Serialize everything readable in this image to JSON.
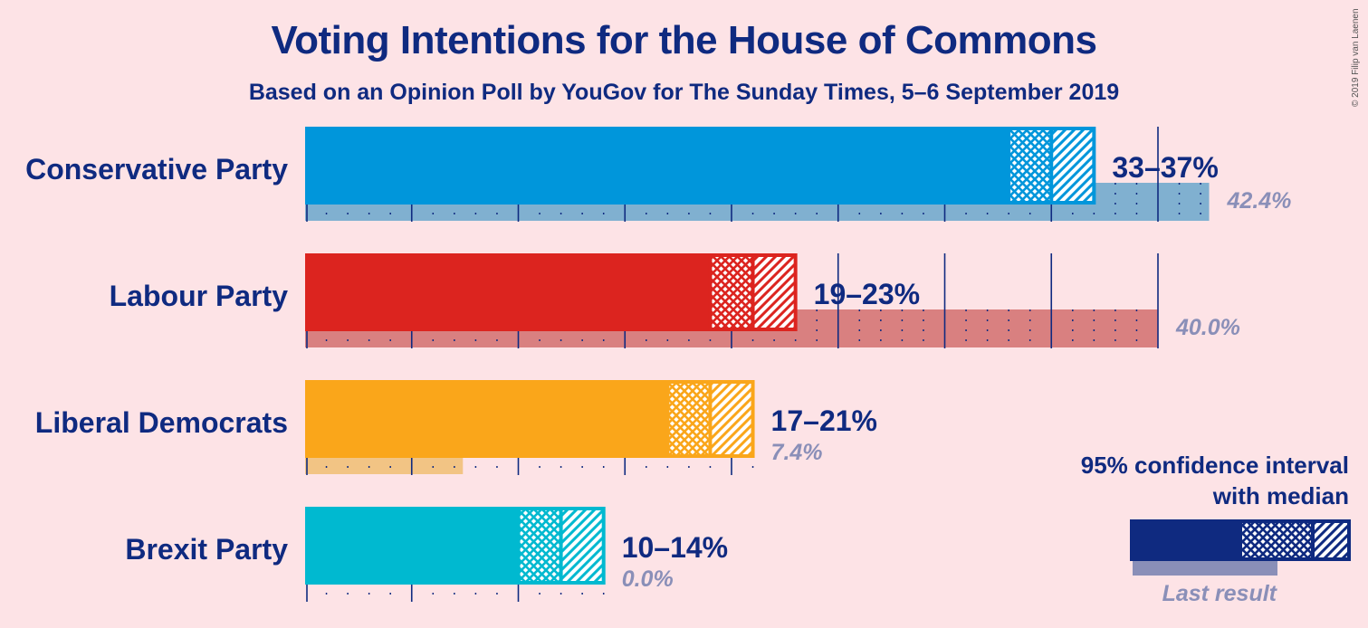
{
  "title": "Voting Intentions for the House of Commons",
  "subtitle": "Based on an Opinion Poll by YouGov for The Sunday Times, 5–6 September 2019",
  "copyright": "© 2019 Filip van Laenen",
  "chart_data": {
    "type": "bar",
    "orientation": "horizontal",
    "categories": [
      "Conservative Party",
      "Labour Party",
      "Liberal Democrats",
      "Brexit Party"
    ],
    "series": [
      {
        "name": "Last result",
        "values": [
          42.4,
          40.0,
          7.4,
          0.0
        ],
        "labels": [
          "42.4%",
          "40.0%",
          "7.4%",
          "0.0%"
        ]
      }
    ],
    "confidence_intervals": [
      {
        "low": 33,
        "median": 35,
        "high": 37,
        "label": "33–37%"
      },
      {
        "low": 19,
        "median": 21,
        "high": 23,
        "label": "19–23%"
      },
      {
        "low": 17,
        "median": 19,
        "high": 21,
        "label": "17–21%"
      },
      {
        "low": 10,
        "median": 12,
        "high": 14,
        "label": "10–14%"
      }
    ],
    "colors": [
      "#0096db",
      "#dc241f",
      "#faa61a",
      "#00b9d0"
    ],
    "last_colors": [
      "#80b0d0",
      "#d98080",
      "#f2c484",
      "#8fd6e0"
    ],
    "xlim": [
      0,
      43
    ],
    "grid": true,
    "legend": {
      "line1": "95% confidence interval",
      "line2": "with median",
      "last_result": "Last result",
      "position": "bottom-right"
    }
  }
}
